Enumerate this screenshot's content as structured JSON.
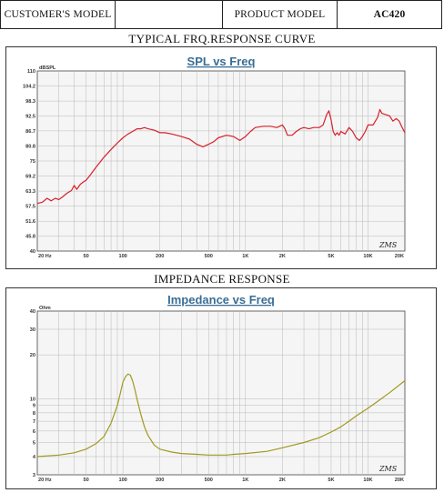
{
  "header": {
    "customer_label": "CUSTOMER'S MODEL",
    "customer_value": "",
    "product_label": "PRODUCT MODEL",
    "product_value": "AC420"
  },
  "sections": {
    "spl_title": "TYPICAL FRQ.RESPONSE CURVE",
    "impedance_title": "IMPEDANCE RESPONSE"
  },
  "colors": {
    "spl_curve": "#d8202a",
    "impedance_curve": "#a09a1e",
    "title_text": "#3a6e95",
    "grid": "#b9b9b9",
    "plot_background": "#f5f5f5"
  },
  "chart_data": [
    {
      "type": "line",
      "title": "SPL vs Freq",
      "ylabel": "dBSPL",
      "x_scale": "log",
      "xlim": [
        20,
        20000
      ],
      "ylim": [
        40,
        110
      ],
      "x_ticks": [
        20,
        50,
        100,
        200,
        500,
        1000,
        2000,
        5000,
        10000,
        20000
      ],
      "x_tick_labels": [
        "20 Hz",
        "50",
        "100",
        "200",
        "500",
        "1K",
        "2K",
        "5K",
        "10K",
        "20K"
      ],
      "y_ticks": [
        40,
        45.8,
        51.6,
        57.5,
        63.3,
        69.2,
        75,
        80.8,
        86.7,
        92.5,
        98.3,
        104.2,
        110
      ],
      "y_tick_labels": [
        "40",
        "45.8",
        "51.6",
        "57.5",
        "63.3",
        "69.2",
        "75",
        "80.8",
        "86.7",
        "92.5",
        "98.3",
        "104.2",
        "110"
      ],
      "grid": true,
      "signature": "ZMS",
      "series": [
        {
          "x": [
            20,
            22,
            24,
            26,
            28,
            30,
            32,
            35,
            38,
            40,
            42,
            45,
            48,
            50,
            55,
            60,
            65,
            70,
            80,
            90,
            100,
            110,
            120,
            130,
            140,
            150,
            160,
            180,
            200,
            220,
            250,
            300,
            350,
            400,
            450,
            500,
            550,
            600,
            700,
            800,
            900,
            1000,
            1100,
            1200,
            1400,
            1600,
            1800,
            2000,
            2100,
            2200,
            2400,
            2600,
            2800,
            3000,
            3300,
            3600,
            4000,
            4300,
            4600,
            4800,
            5000,
            5200,
            5400,
            5600,
            5800,
            6000,
            6500,
            7000,
            7500,
            8000,
            8500,
            9000,
            9500,
            10000,
            11000,
            12000,
            12500,
            13000,
            14000,
            15000,
            16000,
            17000,
            18000,
            19000,
            20000
          ],
          "y": [
            58.5,
            59,
            60.5,
            59.5,
            60.5,
            60,
            61,
            62.5,
            63.5,
            65.5,
            64,
            66,
            67,
            67.5,
            70,
            72.5,
            74.5,
            76.5,
            79.5,
            82,
            84,
            85.5,
            86.5,
            87.5,
            87.5,
            88,
            87.5,
            87,
            86,
            86,
            85.5,
            84.5,
            83.5,
            81.5,
            80.5,
            81.5,
            82.5,
            84,
            85,
            84.5,
            83,
            84.5,
            86.5,
            88,
            88.5,
            88.5,
            88,
            89,
            87.5,
            85,
            85,
            86.5,
            87.5,
            88,
            87.5,
            88,
            88,
            89,
            93,
            94.5,
            91,
            86.5,
            85,
            86,
            85,
            86.5,
            85.5,
            88,
            86.5,
            84,
            83,
            84.5,
            86.5,
            89,
            89,
            92,
            95,
            93.5,
            93,
            92.5,
            90.5,
            91.5,
            90.5,
            88,
            86
          ]
        }
      ]
    },
    {
      "type": "line",
      "title": "Impedance vs Freq",
      "ylabel": "Ohm",
      "x_scale": "log",
      "y_scale": "log",
      "xlim": [
        20,
        20000
      ],
      "ylim": [
        3,
        40
      ],
      "x_ticks": [
        20,
        50,
        100,
        200,
        500,
        1000,
        2000,
        5000,
        10000,
        20000
      ],
      "x_tick_labels": [
        "20 Hz",
        "50",
        "100",
        "200",
        "500",
        "1K",
        "2K",
        "5K",
        "10K",
        "20K"
      ],
      "y_ticks": [
        3,
        4,
        5,
        6,
        7,
        8,
        9,
        10,
        20,
        30,
        40
      ],
      "y_tick_labels": [
        "3",
        "4",
        "5",
        "6",
        "7",
        "8",
        "9",
        "10",
        "20",
        "30",
        "40"
      ],
      "grid": true,
      "signature": "ZMS",
      "series": [
        {
          "x": [
            20,
            30,
            40,
            50,
            60,
            70,
            80,
            90,
            95,
            100,
            105,
            110,
            115,
            120,
            125,
            130,
            140,
            150,
            160,
            180,
            200,
            250,
            300,
            400,
            500,
            600,
            700,
            800,
            1000,
            1500,
            2000,
            3000,
            4000,
            5000,
            6000,
            7000,
            8000,
            10000,
            12000,
            15000,
            20000
          ],
          "y": [
            4.0,
            4.1,
            4.25,
            4.5,
            4.9,
            5.5,
            6.8,
            9.0,
            10.8,
            13.0,
            14.2,
            14.8,
            14.5,
            13.2,
            11.6,
            10.0,
            7.8,
            6.4,
            5.6,
            4.8,
            4.5,
            4.3,
            4.2,
            4.15,
            4.1,
            4.1,
            4.1,
            4.15,
            4.2,
            4.35,
            4.6,
            5.0,
            5.4,
            5.9,
            6.4,
            7.0,
            7.6,
            8.6,
            9.6,
            11.0,
            13.3
          ]
        }
      ]
    }
  ]
}
